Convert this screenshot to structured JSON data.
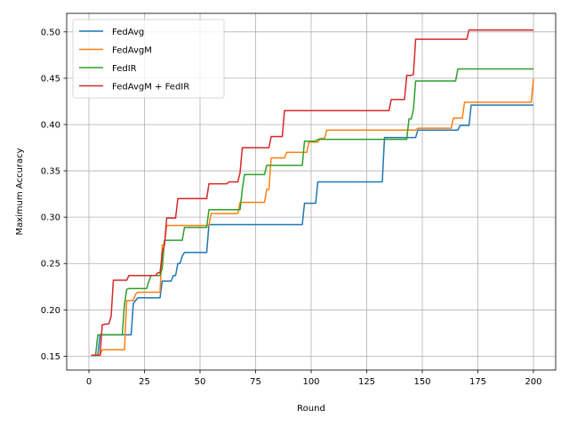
{
  "chart_data": {
    "type": "line",
    "title": "",
    "xlabel": "Round",
    "ylabel": "Maximum Accuracy",
    "xlim": [
      -10,
      210
    ],
    "ylim": [
      0.135,
      0.52
    ],
    "xticks": [
      0,
      25,
      50,
      75,
      100,
      125,
      150,
      175,
      200
    ],
    "xtick_labels": [
      "0",
      "25",
      "50",
      "75",
      "100",
      "125",
      "150",
      "175",
      "200"
    ],
    "yticks": [
      0.15,
      0.2,
      0.25,
      0.3,
      0.35,
      0.4,
      0.45,
      0.5
    ],
    "ytick_labels": [
      "0.15",
      "0.20",
      "0.25",
      "0.30",
      "0.35",
      "0.40",
      "0.45",
      "0.50"
    ],
    "grid": true,
    "legend_position": "top-left",
    "series": [
      {
        "name": "FedAvg",
        "color": "#1f77b4",
        "points": [
          [
            1,
            0.151
          ],
          [
            4,
            0.151
          ],
          [
            5,
            0.173
          ],
          [
            18,
            0.173
          ],
          [
            19,
            0.173
          ],
          [
            20,
            0.207
          ],
          [
            21,
            0.21
          ],
          [
            22,
            0.213
          ],
          [
            32,
            0.213
          ],
          [
            33,
            0.231
          ],
          [
            37,
            0.231
          ],
          [
            38,
            0.237
          ],
          [
            39,
            0.237
          ],
          [
            40,
            0.25
          ],
          [
            41,
            0.25
          ],
          [
            42,
            0.258
          ],
          [
            43,
            0.262
          ],
          [
            53,
            0.262
          ],
          [
            54,
            0.292
          ],
          [
            96,
            0.292
          ],
          [
            97,
            0.315
          ],
          [
            102,
            0.315
          ],
          [
            103,
            0.338
          ],
          [
            132,
            0.338
          ],
          [
            133,
            0.386
          ],
          [
            147,
            0.386
          ],
          [
            148,
            0.394
          ],
          [
            166,
            0.394
          ],
          [
            167,
            0.399
          ],
          [
            171,
            0.399
          ],
          [
            172,
            0.421
          ],
          [
            200,
            0.421
          ]
        ]
      },
      {
        "name": "FedAvgM",
        "color": "#ff7f0e",
        "points": [
          [
            1,
            0.151
          ],
          [
            5,
            0.151
          ],
          [
            6,
            0.157
          ],
          [
            16,
            0.157
          ],
          [
            17,
            0.21
          ],
          [
            20,
            0.21
          ],
          [
            21,
            0.217
          ],
          [
            22,
            0.219
          ],
          [
            32,
            0.219
          ],
          [
            33,
            0.27
          ],
          [
            34,
            0.271
          ],
          [
            35,
            0.291
          ],
          [
            54,
            0.291
          ],
          [
            55,
            0.304
          ],
          [
            67,
            0.304
          ],
          [
            68,
            0.316
          ],
          [
            79,
            0.316
          ],
          [
            80,
            0.33
          ],
          [
            81,
            0.33
          ],
          [
            82,
            0.364
          ],
          [
            88,
            0.364
          ],
          [
            89,
            0.37
          ],
          [
            98,
            0.37
          ],
          [
            99,
            0.381
          ],
          [
            103,
            0.381
          ],
          [
            104,
            0.385
          ],
          [
            106,
            0.385
          ],
          [
            107,
            0.394
          ],
          [
            147,
            0.394
          ],
          [
            148,
            0.396
          ],
          [
            163,
            0.396
          ],
          [
            164,
            0.407
          ],
          [
            168,
            0.407
          ],
          [
            169,
            0.424
          ],
          [
            199,
            0.424
          ],
          [
            200,
            0.449
          ]
        ]
      },
      {
        "name": "FedIR",
        "color": "#2ca02c",
        "points": [
          [
            1,
            0.151
          ],
          [
            3,
            0.151
          ],
          [
            4,
            0.173
          ],
          [
            15,
            0.173
          ],
          [
            16,
            0.206
          ],
          [
            17,
            0.222
          ],
          [
            18,
            0.223
          ],
          [
            26,
            0.223
          ],
          [
            27,
            0.231
          ],
          [
            28,
            0.237
          ],
          [
            32,
            0.237
          ],
          [
            33,
            0.245
          ],
          [
            34,
            0.275
          ],
          [
            42,
            0.275
          ],
          [
            43,
            0.289
          ],
          [
            53,
            0.289
          ],
          [
            54,
            0.308
          ],
          [
            68,
            0.308
          ],
          [
            69,
            0.33
          ],
          [
            70,
            0.346
          ],
          [
            79,
            0.346
          ],
          [
            80,
            0.356
          ],
          [
            96,
            0.356
          ],
          [
            97,
            0.382
          ],
          [
            102,
            0.382
          ],
          [
            103,
            0.384
          ],
          [
            143,
            0.384
          ],
          [
            144,
            0.406
          ],
          [
            145,
            0.406
          ],
          [
            146,
            0.416
          ],
          [
            147,
            0.447
          ],
          [
            165,
            0.447
          ],
          [
            166,
            0.46
          ],
          [
            200,
            0.46
          ]
        ]
      },
      {
        "name": "FedAvgM + FedIR",
        "color": "#d62728",
        "points": [
          [
            1,
            0.151
          ],
          [
            5,
            0.151
          ],
          [
            6,
            0.184
          ],
          [
            9,
            0.185
          ],
          [
            10,
            0.193
          ],
          [
            11,
            0.232
          ],
          [
            16,
            0.232
          ],
          [
            17,
            0.232
          ],
          [
            18,
            0.237
          ],
          [
            30,
            0.237
          ],
          [
            31,
            0.24
          ],
          [
            32,
            0.24
          ],
          [
            33,
            0.262
          ],
          [
            34,
            0.27
          ],
          [
            35,
            0.299
          ],
          [
            39,
            0.299
          ],
          [
            40,
            0.32
          ],
          [
            53,
            0.32
          ],
          [
            54,
            0.336
          ],
          [
            62,
            0.336
          ],
          [
            63,
            0.338
          ],
          [
            67,
            0.338
          ],
          [
            68,
            0.348
          ],
          [
            69,
            0.375
          ],
          [
            81,
            0.375
          ],
          [
            82,
            0.387
          ],
          [
            87,
            0.387
          ],
          [
            88,
            0.415
          ],
          [
            135,
            0.415
          ],
          [
            136,
            0.427
          ],
          [
            142,
            0.427
          ],
          [
            143,
            0.453
          ],
          [
            145,
            0.453
          ],
          [
            146,
            0.454
          ],
          [
            147,
            0.492
          ],
          [
            170,
            0.492
          ],
          [
            171,
            0.502
          ],
          [
            200,
            0.502
          ]
        ]
      }
    ]
  }
}
